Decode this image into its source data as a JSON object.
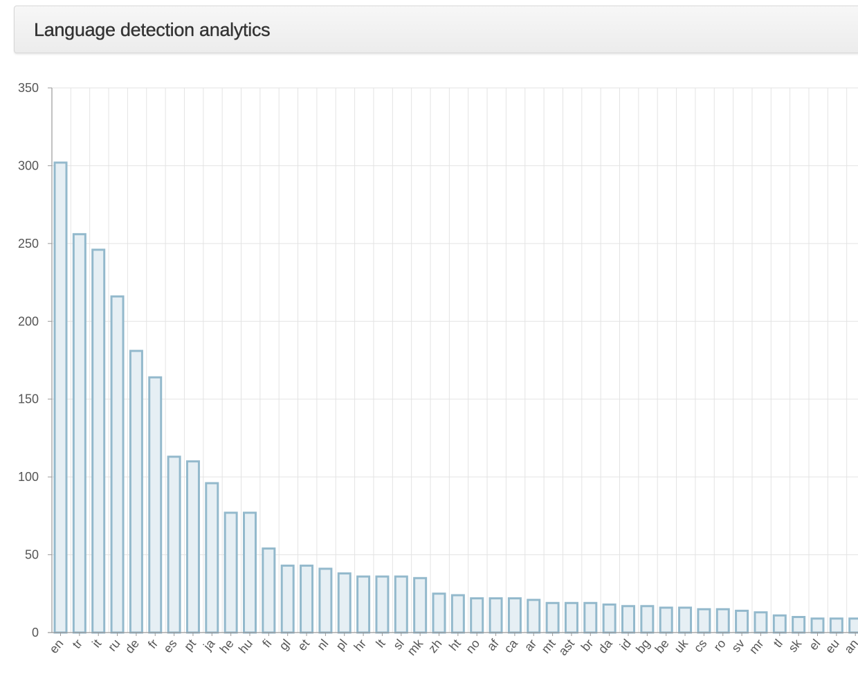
{
  "panel": {
    "title": "Language detection analytics"
  },
  "colors": {
    "bar_fill": "#e6eff4",
    "bar_stroke": "#93b9cc",
    "grid": "#e3e3e3",
    "axis": "#999999",
    "tick_text": "#555555"
  },
  "chart_data": {
    "type": "bar",
    "title": "",
    "xlabel": "",
    "ylabel": "",
    "ylim": [
      0,
      350
    ],
    "yticks": [
      0,
      50,
      100,
      150,
      200,
      250,
      300,
      350
    ],
    "grid": true,
    "legend": "none",
    "categories": [
      "en",
      "tr",
      "it",
      "ru",
      "de",
      "fr",
      "es",
      "pt",
      "ja",
      "he",
      "hu",
      "fi",
      "gl",
      "et",
      "nl",
      "pl",
      "hr",
      "lt",
      "sl",
      "mk",
      "zh",
      "ht",
      "no",
      "af",
      "ca",
      "ar",
      "mt",
      "ast",
      "br",
      "da",
      "id",
      "bg",
      "be",
      "uk",
      "cs",
      "ro",
      "sv",
      "mr",
      "tl",
      "sk",
      "el",
      "eu",
      "an"
    ],
    "values": [
      302,
      256,
      246,
      216,
      181,
      164,
      113,
      110,
      96,
      77,
      77,
      54,
      43,
      43,
      41,
      38,
      36,
      36,
      36,
      35,
      25,
      24,
      22,
      22,
      22,
      21,
      19,
      19,
      19,
      18,
      17,
      17,
      16,
      16,
      15,
      15,
      14,
      13,
      11,
      10,
      9,
      9,
      9
    ]
  }
}
